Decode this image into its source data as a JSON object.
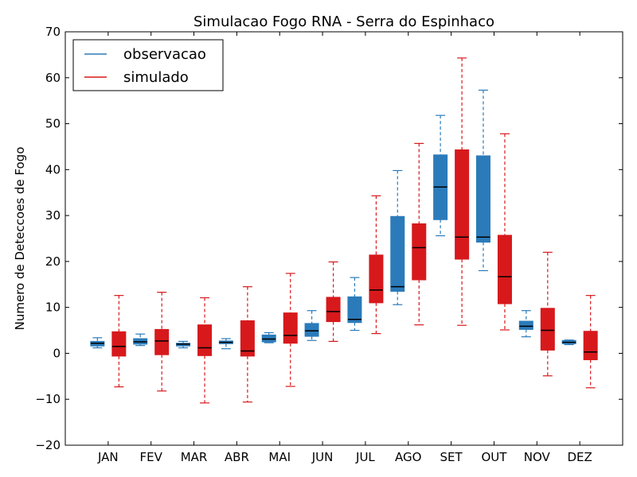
{
  "chart_data": {
    "type": "boxplot",
    "title": "Simulacao Fogo RNA - Serra do Espinhaco",
    "xlabel": "",
    "ylabel": "Numero de Deteccoes de Fogo",
    "ylim": [
      -20,
      70
    ],
    "yticks": [
      -20,
      -10,
      0,
      10,
      20,
      30,
      40,
      50,
      60,
      70
    ],
    "grid": false,
    "legend_position": "top-left",
    "categories": [
      "JAN",
      "FEV",
      "MAR",
      "ABR",
      "MAI",
      "JUN",
      "JUL",
      "AGO",
      "SET",
      "OUT",
      "NOV",
      "DEZ"
    ],
    "series": [
      {
        "name": "observacao",
        "color": "#2b7bba",
        "boxes": [
          {
            "whisker_low": 1.2,
            "q1": 1.6,
            "median": 2.2,
            "q3": 2.6,
            "whisker_high": 3.4
          },
          {
            "whisker_low": 1.7,
            "q1": 2.0,
            "median": 2.5,
            "q3": 3.2,
            "whisker_high": 4.2
          },
          {
            "whisker_low": 1.2,
            "q1": 1.6,
            "median": 2.0,
            "q3": 2.2,
            "whisker_high": 2.6
          },
          {
            "whisker_low": 1.0,
            "q1": 2.1,
            "median": 2.4,
            "q3": 2.7,
            "whisker_high": 3.2
          },
          {
            "whisker_low": 2.3,
            "q1": 2.5,
            "median": 3.1,
            "q3": 4.0,
            "whisker_high": 4.5
          },
          {
            "whisker_low": 2.8,
            "q1": 3.7,
            "median": 4.9,
            "q3": 6.5,
            "whisker_high": 9.3
          },
          {
            "whisker_low": 5.0,
            "q1": 6.7,
            "median": 7.4,
            "q3": 12.3,
            "whisker_high": 16.5
          },
          {
            "whisker_low": 10.6,
            "q1": 13.5,
            "median": 14.5,
            "q3": 29.8,
            "whisker_high": 39.8
          },
          {
            "whisker_low": 25.6,
            "q1": 29.1,
            "median": 36.2,
            "q3": 43.2,
            "whisker_high": 51.8
          },
          {
            "whisker_low": 18.0,
            "q1": 24.2,
            "median": 25.3,
            "q3": 43.0,
            "whisker_high": 57.3
          },
          {
            "whisker_low": 3.6,
            "q1": 5.2,
            "median": 5.9,
            "q3": 7.0,
            "whisker_high": 9.3
          },
          {
            "whisker_low": 1.9,
            "q1": 2.1,
            "median": 2.4,
            "q3": 2.8,
            "whisker_high": 2.9
          }
        ]
      },
      {
        "name": "simulado",
        "color": "#d7191c",
        "boxes": [
          {
            "whisker_low": -7.3,
            "q1": -0.6,
            "median": 1.5,
            "q3": 4.7,
            "whisker_high": 12.6
          },
          {
            "whisker_low": -8.2,
            "q1": -0.3,
            "median": 2.7,
            "q3": 5.2,
            "whisker_high": 13.3
          },
          {
            "whisker_low": -10.8,
            "q1": -0.5,
            "median": 1.2,
            "q3": 6.2,
            "whisker_high": 12.1
          },
          {
            "whisker_low": -10.6,
            "q1": -0.6,
            "median": 0.5,
            "q3": 7.1,
            "whisker_high": 14.5
          },
          {
            "whisker_low": -7.2,
            "q1": 2.2,
            "median": 3.9,
            "q3": 8.8,
            "whisker_high": 17.4
          },
          {
            "whisker_low": 2.6,
            "q1": 6.9,
            "median": 9.1,
            "q3": 12.2,
            "whisker_high": 19.9
          },
          {
            "whisker_low": 4.3,
            "q1": 11.0,
            "median": 13.8,
            "q3": 21.4,
            "whisker_high": 34.3
          },
          {
            "whisker_low": 6.2,
            "q1": 16.0,
            "median": 23.0,
            "q3": 28.2,
            "whisker_high": 45.7
          },
          {
            "whisker_low": 6.1,
            "q1": 20.5,
            "median": 25.3,
            "q3": 44.3,
            "whisker_high": 64.3
          },
          {
            "whisker_low": 5.1,
            "q1": 10.8,
            "median": 16.7,
            "q3": 25.7,
            "whisker_high": 47.8
          },
          {
            "whisker_low": -4.9,
            "q1": 0.7,
            "median": 5.0,
            "q3": 9.8,
            "whisker_high": 22.0
          },
          {
            "whisker_low": -7.5,
            "q1": -1.4,
            "median": 0.3,
            "q3": 4.8,
            "whisker_high": 12.6
          }
        ]
      }
    ],
    "median_color": "#000000"
  }
}
